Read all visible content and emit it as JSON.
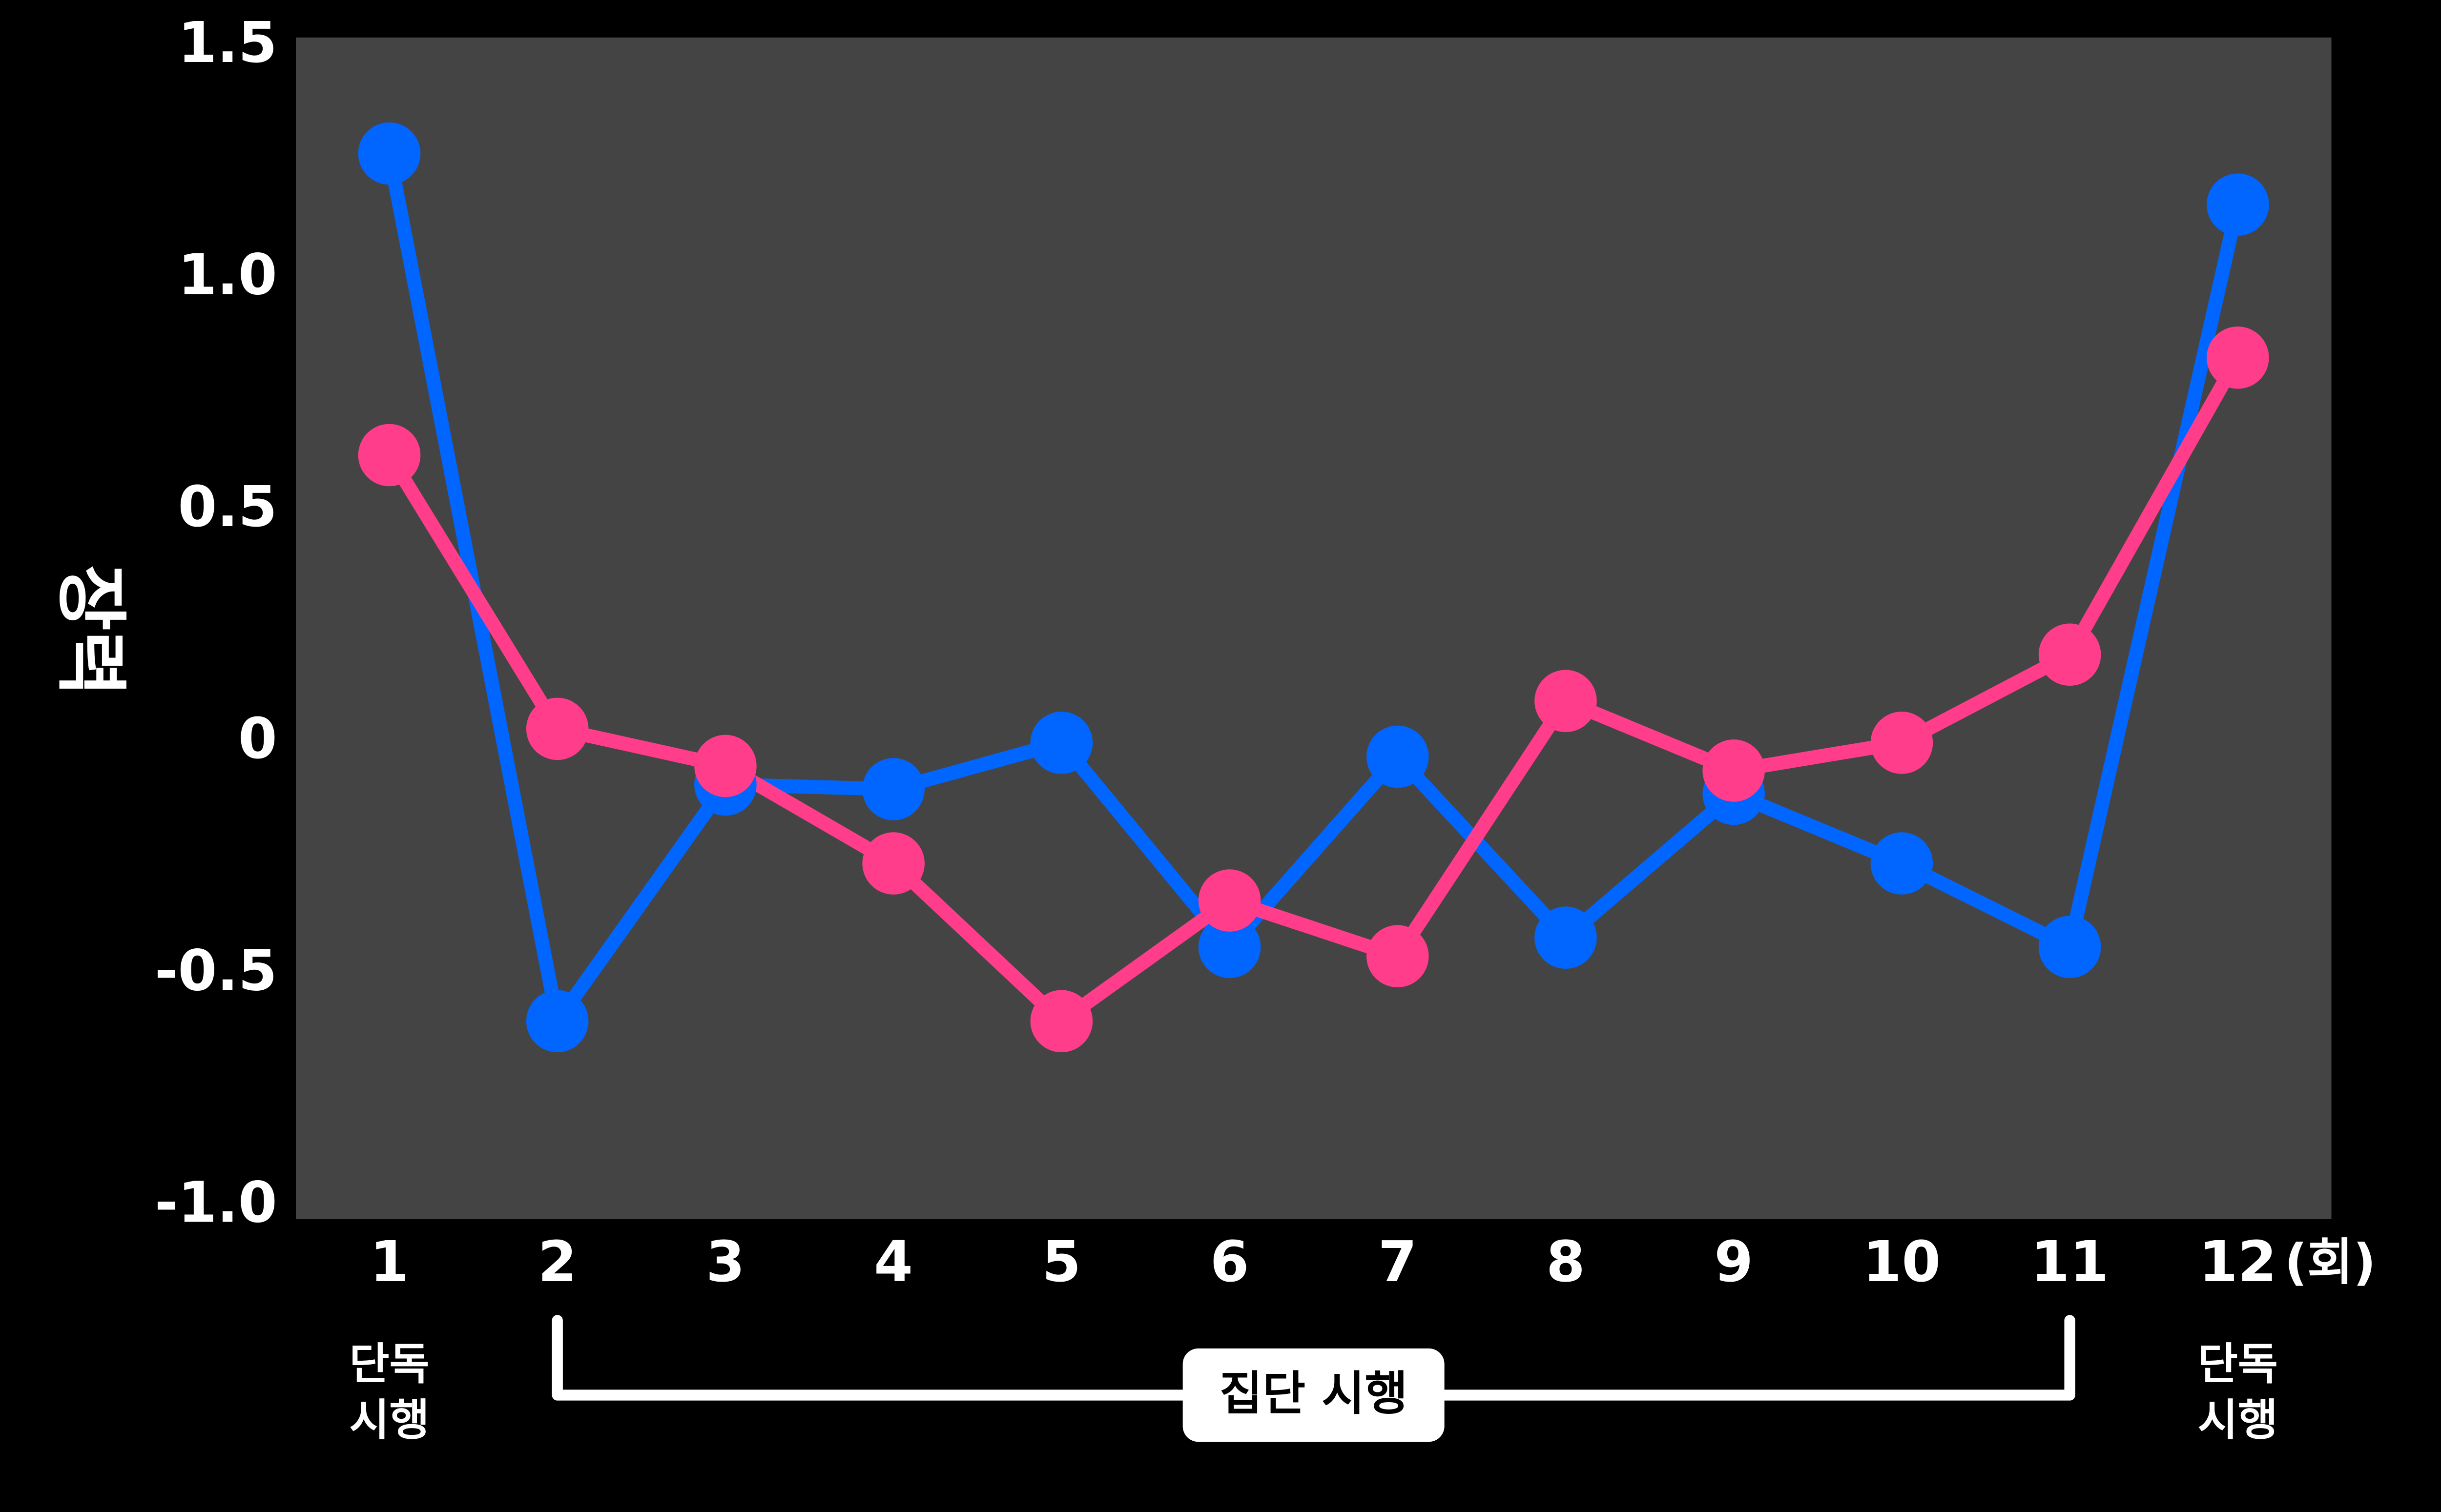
{
  "chart_data": {
    "type": "line",
    "y_label": "장력",
    "categories": [
      "1",
      "2",
      "3",
      "4",
      "5",
      "6",
      "7",
      "8",
      "9",
      "10",
      "11",
      "12"
    ],
    "x_unit": "(회)",
    "series": [
      {
        "color": "#0066ff",
        "values": [
          1.27,
          -0.6,
          -0.09,
          -0.1,
          0,
          -0.44,
          -0.03,
          -0.42,
          -0.11,
          -0.26,
          -0.44,
          1.16
        ]
      },
      {
        "color": "#ff3d8b",
        "values": [
          0.62,
          0.03,
          -0.05,
          -0.26,
          -0.6,
          -0.34,
          -0.46,
          0.09,
          -0.06,
          0,
          0.19,
          0.83
        ]
      }
    ],
    "ylim": [
      -1,
      1.5
    ],
    "yticks": [
      {
        "value": -1,
        "label": "-1.0"
      },
      -0.5,
      0,
      0.5,
      {
        "value": 1,
        "label": "1.0"
      },
      1.5
    ],
    "annotations": [
      [
        "단독",
        "시행"
      ],
      "집단 시행",
      [
        "단독",
        "시행"
      ]
    ]
  }
}
